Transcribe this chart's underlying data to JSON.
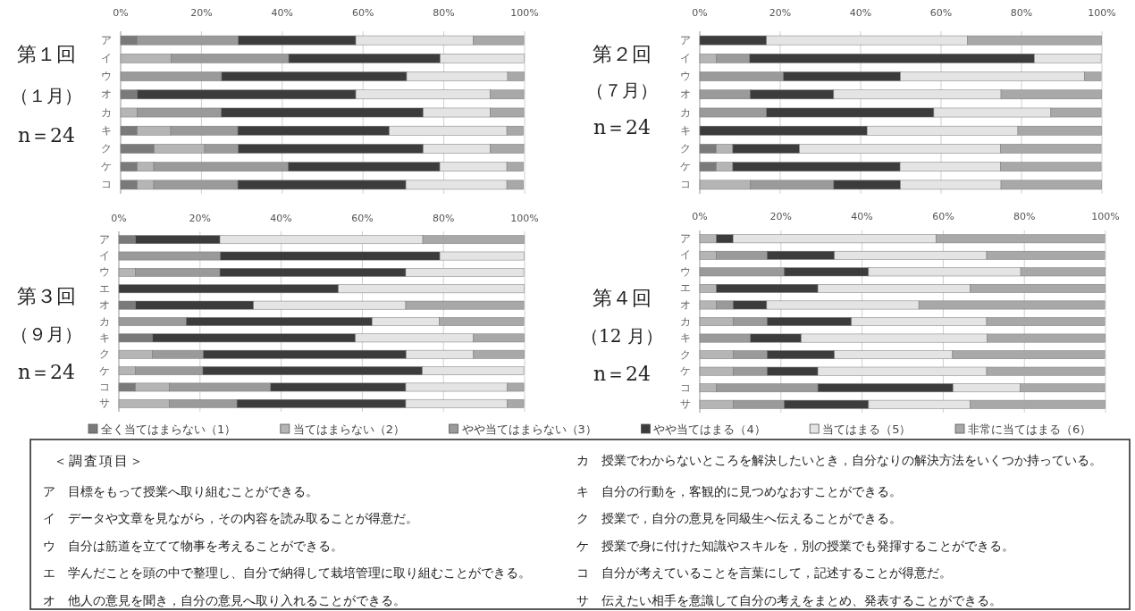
{
  "chart_data": [
    {
      "type": "bar",
      "orientation": "horizontal",
      "stacked": true,
      "title": "第１回",
      "subtitle": "（１月）",
      "annotations": [
        "n＝24"
      ],
      "categories": [
        "ア",
        "イ",
        "ウ",
        "オ",
        "カ",
        "キ",
        "ク",
        "ケ",
        "コ"
      ],
      "xlim": [
        0,
        100
      ],
      "xticks": [
        {
          "value": 0,
          "label": "0%"
        },
        {
          "value": 20,
          "label": "20%"
        },
        {
          "value": 40,
          "label": "40%"
        },
        {
          "value": 60,
          "label": "60%"
        },
        {
          "value": 80,
          "label": "80%"
        },
        {
          "value": 100,
          "label": "100%"
        }
      ],
      "grid": "x",
      "series": [
        {
          "color": "#7a7a7a",
          "values": [
            4.1,
            0,
            0,
            4.1,
            0,
            4.1,
            8.3,
            4.1,
            4.1
          ]
        },
        {
          "color": "#b5b5b5",
          "values": [
            0,
            12.5,
            0,
            0,
            4.1,
            8.3,
            12.5,
            4.1,
            4.1
          ]
        },
        {
          "color": "#9a9a9a",
          "values": [
            25,
            29.1,
            25,
            0,
            20.8,
            16.6,
            8.3,
            33.3,
            20.8
          ]
        },
        {
          "color": "#3c3c3c",
          "values": [
            29.1,
            37.5,
            45.8,
            54.1,
            50,
            37.5,
            45.8,
            37.5,
            41.6
          ]
        },
        {
          "color": "#e4e4e4",
          "values": [
            29.1,
            20.8,
            25,
            33.3,
            16.6,
            29.1,
            16.6,
            16.6,
            25
          ]
        },
        {
          "color": "#a8a8a8",
          "values": [
            12.5,
            0,
            4.1,
            8.3,
            8.3,
            4.1,
            8.3,
            4.1,
            4.1
          ]
        }
      ]
    },
    {
      "type": "bar",
      "orientation": "horizontal",
      "stacked": true,
      "title": "第２回",
      "subtitle": "（７月）",
      "annotations": [
        "n＝24"
      ],
      "categories": [
        "ア",
        "イ",
        "ウ",
        "オ",
        "カ",
        "キ",
        "ク",
        "ケ",
        "コ"
      ],
      "xlim": [
        0,
        100
      ],
      "xticks": [
        {
          "value": 0,
          "label": "0%"
        },
        {
          "value": 20,
          "label": "20%"
        },
        {
          "value": 40,
          "label": "40%"
        },
        {
          "value": 60,
          "label": "60%"
        },
        {
          "value": 80,
          "label": "80%"
        },
        {
          "value": 100,
          "label": "100%"
        }
      ],
      "grid": "x",
      "series": [
        {
          "color": "#7a7a7a",
          "values": [
            0,
            0,
            0,
            0,
            0,
            0,
            4.1,
            4.1,
            0
          ]
        },
        {
          "color": "#b5b5b5",
          "values": [
            0,
            4.1,
            0,
            0,
            0,
            0,
            4.1,
            4.1,
            12.5
          ]
        },
        {
          "color": "#9a9a9a",
          "values": [
            0,
            8.3,
            20.8,
            12.5,
            16.6,
            0,
            0,
            0,
            20.8
          ]
        },
        {
          "color": "#3c3c3c",
          "values": [
            16.6,
            70.8,
            29.1,
            20.8,
            41.6,
            41.6,
            16.6,
            41.6,
            16.6
          ]
        },
        {
          "color": "#e4e4e4",
          "values": [
            50,
            16.6,
            45.8,
            41.6,
            29.1,
            37.5,
            50,
            25,
            25
          ]
        },
        {
          "color": "#a8a8a8",
          "values": [
            33.3,
            0,
            4.1,
            25,
            12.5,
            20.8,
            25,
            25,
            25
          ]
        }
      ]
    },
    {
      "type": "bar",
      "orientation": "horizontal",
      "stacked": true,
      "title": "第３回",
      "subtitle": "（９月）",
      "annotations": [
        "n＝24"
      ],
      "categories": [
        "ア",
        "イ",
        "ウ",
        "エ",
        "オ",
        "カ",
        "キ",
        "ク",
        "ケ",
        "コ",
        "サ"
      ],
      "xlim": [
        0,
        100
      ],
      "xticks": [
        {
          "value": 0,
          "label": "0%"
        },
        {
          "value": 20,
          "label": "20%"
        },
        {
          "value": 40,
          "label": "40%"
        },
        {
          "value": 60,
          "label": "60%"
        },
        {
          "value": 80,
          "label": "80%"
        },
        {
          "value": 100,
          "label": "100%"
        }
      ],
      "grid": "x",
      "series": [
        {
          "color": "#7a7a7a",
          "values": [
            4.1,
            0,
            0,
            0,
            4.1,
            0,
            8.3,
            0,
            0,
            4.1,
            0
          ]
        },
        {
          "color": "#b5b5b5",
          "values": [
            0,
            0,
            4.1,
            0,
            0,
            0,
            0,
            8.3,
            4.1,
            8.3,
            12.5
          ]
        },
        {
          "color": "#9a9a9a",
          "values": [
            0,
            25,
            20.8,
            0,
            0,
            16.6,
            0,
            12.5,
            16.6,
            25,
            16.6
          ]
        },
        {
          "color": "#3c3c3c",
          "values": [
            20.8,
            54.1,
            45.8,
            54.1,
            29.1,
            45.8,
            50,
            50,
            54.1,
            33.3,
            41.6
          ]
        },
        {
          "color": "#e4e4e4",
          "values": [
            50,
            20.8,
            29.1,
            45.8,
            37.5,
            16.6,
            29.1,
            16.6,
            25,
            25,
            25
          ]
        },
        {
          "color": "#a8a8a8",
          "values": [
            25,
            0,
            0,
            0,
            29.1,
            20.8,
            12.5,
            12.5,
            0,
            4.1,
            4.1
          ]
        }
      ]
    },
    {
      "type": "bar",
      "orientation": "horizontal",
      "stacked": true,
      "title": "第４回",
      "subtitle": "（12 月）",
      "annotations": [
        "n＝24"
      ],
      "categories": [
        "ア",
        "イ",
        "ウ",
        "エ",
        "オ",
        "カ",
        "キ",
        "ク",
        "ケ",
        "コ",
        "サ"
      ],
      "xlim": [
        0,
        100
      ],
      "xticks": [
        {
          "value": 0,
          "label": "0%"
        },
        {
          "value": 20,
          "label": "20%"
        },
        {
          "value": 40,
          "label": "40%"
        },
        {
          "value": 60,
          "label": "60%"
        },
        {
          "value": 80,
          "label": "80%"
        },
        {
          "value": 100,
          "label": "100%"
        }
      ],
      "grid": "x",
      "legend": "bottom",
      "series": [
        {
          "name": "全く当てはまらない（1）",
          "color": "#7a7a7a",
          "values": [
            0,
            0,
            0,
            0,
            0,
            0,
            0,
            0,
            0,
            0,
            0
          ]
        },
        {
          "name": "当てはまらない（2）",
          "color": "#b5b5b5",
          "values": [
            4.1,
            4.1,
            0,
            4.1,
            4.1,
            8.3,
            0,
            8.3,
            8.3,
            4.1,
            8.3
          ]
        },
        {
          "name": "やや当てはまらない（3）",
          "color": "#9a9a9a",
          "values": [
            0,
            12.5,
            20.8,
            0,
            4.1,
            8.3,
            12.5,
            8.3,
            8.3,
            25,
            12.5
          ]
        },
        {
          "name": "やや当てはまる（4）",
          "color": "#3c3c3c",
          "values": [
            4.1,
            16.6,
            20.8,
            25,
            8.3,
            20.8,
            12.5,
            16.6,
            12.5,
            33.3,
            20.8
          ]
        },
        {
          "name": "当てはまる（5）",
          "color": "#e4e4e4",
          "values": [
            50,
            37.5,
            37.5,
            37.5,
            37.5,
            33.3,
            45.8,
            29.1,
            41.6,
            16.6,
            25
          ]
        },
        {
          "name": "非常に当てはまる（6）",
          "color": "#a8a8a8",
          "values": [
            41.6,
            29.1,
            20.8,
            33.3,
            45.8,
            29.1,
            29.1,
            37.5,
            29.1,
            20.8,
            33.3
          ]
        }
      ]
    },
    {
      "type": "other",
      "title": "＜調査項目＞",
      "annotations": [
        "ア　目標をもって授業へ取り組むことができる。",
        "イ　データや文章を見ながら，その内容を読み取ることが得意だ。",
        "ウ　自分は筋道を立てて物事を考えることができる。",
        "エ　学んだことを頭の中で整理し、自分で納得して栽培管理に取り組むことができる。",
        "オ　他人の意見を聞き，自分の意見へ取り入れることができる。",
        "カ　授業でわからないところを解決したいとき，自分なりの解決方法をいくつか持っている。",
        "キ　自分の行動を，客観的に見つめなおすことができる。",
        "ク　授業で，自分の意見を同級生へ伝えることができる。",
        "ケ　授業で身に付けた知識やスキルを，別の授業でも発揮することができる。",
        "コ　自分が考えていることを言葉にして，記述することが得意だ。",
        "サ　伝えたい相手を意識して自分の考えをまとめ、発表することができる。"
      ]
    }
  ]
}
